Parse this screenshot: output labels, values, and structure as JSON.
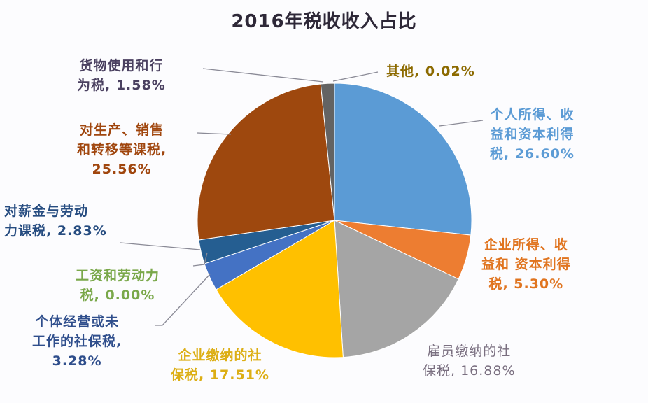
{
  "chart_data": {
    "type": "pie",
    "title": "2016年税收收入占比",
    "start_angle": "12 o'clock, clockwise",
    "slices": [
      {
        "label": "个人所得、收益和资本利得税",
        "value": 26.6,
        "display": "26.60%",
        "color": "#5b9bd5",
        "label_color": "#5b9bd5"
      },
      {
        "label": "企业所得、收益和 资本利得税",
        "value": 5.3,
        "display": "5.30%",
        "color": "#ed7d31",
        "label_color": "#e0741f"
      },
      {
        "label": "雇员缴纳的社保税",
        "value": 16.88,
        "display": "16.88%",
        "color": "#a5a5a5",
        "label_color": "#7a6f80"
      },
      {
        "label": "企业缴纳的社保税",
        "value": 17.51,
        "display": "17.51%",
        "color": "#ffc000",
        "label_color": "#e0b21a"
      },
      {
        "label": "个体经营或未工作的社保税",
        "value": 3.28,
        "display": "3.28%",
        "color": "#4472c4",
        "label_color": "#2f4e8c"
      },
      {
        "label": "工资和劳动力税",
        "value": 0.0,
        "display": "0.00%",
        "color": "#70ad47",
        "label_color": "#7aa84a"
      },
      {
        "label": "对薪金与劳动力课税",
        "value": 2.83,
        "display": "2.83%",
        "color": "#255e91",
        "label_color": "#264c80"
      },
      {
        "label": "对生产、销售和转移等课税",
        "value": 25.56,
        "display": "25.56%",
        "color": "#9e480e",
        "label_color": "#a0460e"
      },
      {
        "label": "货物使用和行为税",
        "value": 1.58,
        "display": "1.58%",
        "color": "#636363",
        "label_color": "#4a4060"
      },
      {
        "label": "其他",
        "value": 0.02,
        "display": "0.02%",
        "color": "#997300",
        "label_color": "#8c6a00"
      }
    ]
  },
  "title": "2016年税收收入占比",
  "labels": {
    "personal": {
      "lines": [
        "个人所得、收",
        "益和资本利得",
        "税, 26.60%"
      ],
      "color": "#5b9bd5"
    },
    "corporate": {
      "lines": [
        "企业所得、收",
        "益和 资本利得",
        "税, 5.30%"
      ],
      "color": "#e0741f"
    },
    "employee_ss": {
      "lines": [
        "雇员缴纳的社",
        "保税, 16.88%"
      ],
      "color": "#7a6f80"
    },
    "employer_ss": {
      "lines": [
        "企业缴纳的社",
        "保税, 17.51%"
      ],
      "color": "#dcae14"
    },
    "selfemp_ss": {
      "lines": [
        "个体经营或未",
        "工作的社保税,",
        "3.28%"
      ],
      "color": "#2f4e8c"
    },
    "payroll": {
      "lines": [
        "工资和劳动力",
        "税, 0.00%"
      ],
      "color": "#7aa84a"
    },
    "wage_tax": {
      "lines": [
        "对薪金与劳动",
        "力课税, 2.83%"
      ],
      "color": "#264c80"
    },
    "production": {
      "lines": [
        "对生产、销售",
        "和转移等课税,",
        "25.56%"
      ],
      "color": "#a0460e"
    },
    "goods_use": {
      "lines": [
        "货物使用和行",
        "为税, 1.58%"
      ],
      "color": "#4a4060"
    },
    "other": {
      "lines": [
        "其他, 0.02%"
      ],
      "color": "#8c6a00"
    }
  }
}
